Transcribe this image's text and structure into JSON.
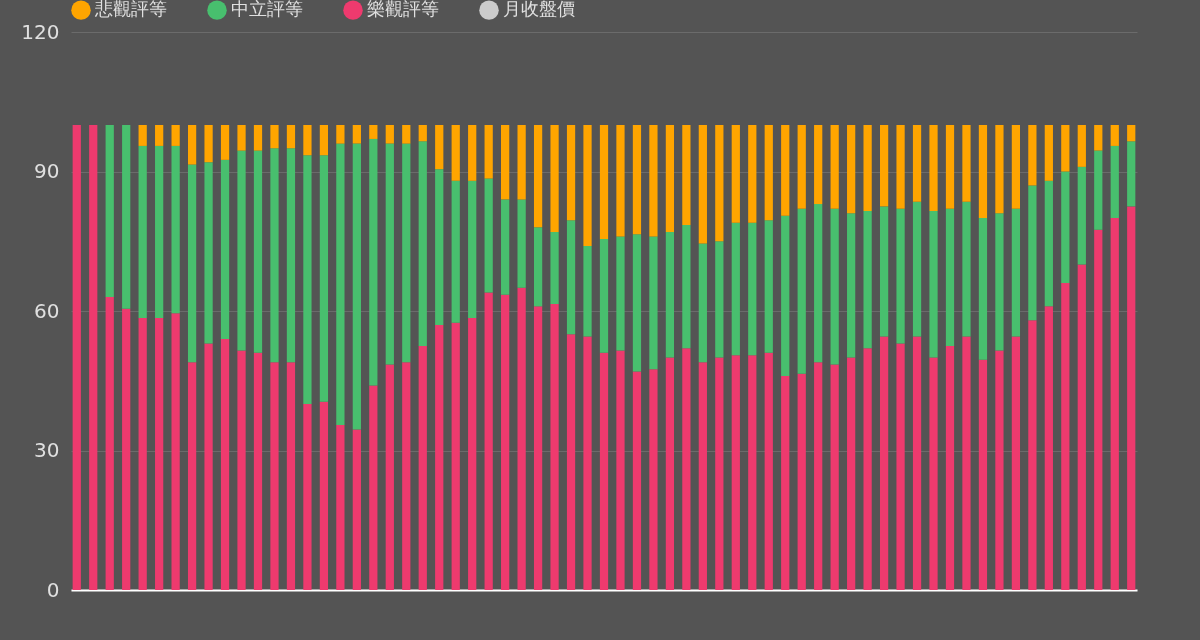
{
  "chart_data": {
    "type": "bar",
    "stacked": true,
    "categories": [
      null,
      null,
      null,
      null,
      null,
      null,
      null,
      null,
      null,
      null,
      null,
      null,
      null,
      null,
      null,
      null,
      null,
      null,
      null,
      null,
      null,
      null,
      null,
      null,
      null,
      null,
      null,
      null,
      null,
      null,
      null,
      null,
      null,
      null,
      null,
      null,
      null,
      null,
      null,
      null,
      null,
      null,
      null,
      null,
      null,
      null,
      null,
      null,
      null,
      null,
      null,
      null,
      null,
      null,
      null,
      null,
      null,
      null,
      null,
      null,
      null,
      null,
      null,
      null,
      null
    ],
    "ylim": [
      0,
      120
    ],
    "yticks": [
      0,
      30,
      60,
      90,
      120
    ],
    "grid": "y",
    "legend": "top",
    "series": [
      {
        "name": "樂觀評等",
        "color": "#ee3a6e",
        "values": [
          100,
          100,
          63,
          60.5,
          58.5,
          58.5,
          59.5,
          49,
          53,
          54,
          51.5,
          51,
          49,
          49,
          40,
          40.5,
          35.5,
          34.5,
          44,
          48.5,
          49,
          52.5,
          57,
          57.5,
          58.5,
          64,
          63.5,
          65,
          61,
          61.5,
          55,
          54.5,
          51,
          51.5,
          47,
          47.5,
          50,
          52,
          49,
          50,
          50.5,
          50.5,
          51,
          46,
          46.5,
          49,
          48.5,
          50,
          52,
          54.5,
          53,
          54.5,
          50,
          52.5,
          54.5,
          49.5,
          51.5,
          54.5,
          58,
          61,
          66,
          70,
          77.5,
          80,
          82.5
        ]
      },
      {
        "name": "中立評等",
        "color": "#48bf6e",
        "values": [
          0,
          0,
          37,
          39.5,
          37,
          37,
          36,
          42.5,
          39,
          38.5,
          43,
          43.5,
          46,
          46,
          53.5,
          53,
          60.5,
          61.5,
          53,
          47.5,
          47,
          44,
          33.5,
          30.5,
          29.5,
          24.5,
          20.5,
          19,
          17,
          15.5,
          24.5,
          19.5,
          24.5,
          24.5,
          29.5,
          28.5,
          27,
          26.5,
          25.5,
          25,
          28.5,
          28.5,
          28.5,
          34.5,
          35.5,
          34,
          33.5,
          31,
          29.5,
          28,
          29,
          29,
          31.5,
          29.5,
          29,
          30.5,
          29.5,
          27.5,
          29,
          27,
          24,
          21,
          17,
          15.5,
          14
        ]
      },
      {
        "name": "悲觀評等",
        "color": "#ffa500",
        "values": [
          0,
          0,
          0,
          0,
          4.5,
          4.5,
          4.5,
          8.5,
          8,
          7.5,
          5.5,
          5.5,
          5,
          5,
          6.5,
          6.5,
          4,
          4,
          3,
          4,
          4,
          3.5,
          9.5,
          12,
          12,
          11.5,
          16,
          16,
          22,
          23,
          20.5,
          26,
          24.5,
          24,
          23.5,
          24,
          23,
          21.5,
          25.5,
          25,
          21,
          21,
          20.5,
          19.5,
          18,
          17,
          18,
          19,
          18.5,
          17.5,
          18,
          16.5,
          18.5,
          18,
          16.5,
          20,
          19,
          18,
          13,
          12,
          10,
          9,
          5.5,
          4.5,
          3.5
        ]
      },
      {
        "name": "月收盤價",
        "type": "line",
        "color": "#cccccc",
        "values": [
          null,
          null,
          null,
          null,
          null,
          null,
          null,
          null,
          null,
          null,
          null,
          null,
          null,
          null,
          null,
          null,
          null,
          null,
          null,
          null,
          null,
          null,
          null,
          null,
          null,
          null,
          null,
          null,
          null,
          null,
          null,
          null,
          null,
          null,
          null,
          null,
          null,
          null,
          null,
          null,
          null,
          null,
          null,
          null,
          null,
          null,
          null,
          null,
          null,
          null,
          null,
          null,
          null,
          null,
          null,
          null,
          null,
          null,
          null,
          null,
          null,
          null,
          null,
          null,
          null
        ]
      }
    ]
  }
}
